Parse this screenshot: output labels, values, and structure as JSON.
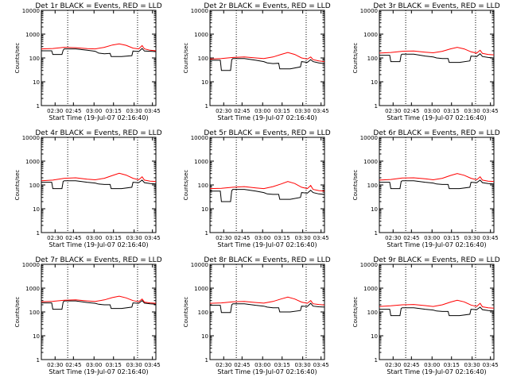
{
  "chart_data": [
    {
      "type": "line",
      "title": "Det 1r BLACK = Events, RED = LLD",
      "xlabel": "Start Time (19-Jul-07 02:16:40)",
      "ylabel": "Counts/sec",
      "yscale": "log",
      "ylim": [
        1,
        10000
      ],
      "xlim": [
        0,
        100
      ],
      "ytick_labels": [
        "1",
        "10",
        "100",
        "1000",
        "10000"
      ],
      "xtick_labels": [
        "02:30",
        "02:45",
        "03:00",
        "03:15",
        "03:30",
        "03:45"
      ],
      "xtick_positions": [
        12,
        28,
        46,
        63,
        81,
        97
      ],
      "vlines": [
        23,
        84
      ],
      "series": [
        {
          "name": "Events",
          "color": "#000000",
          "x": [
            0,
            9,
            10,
            18,
            19,
            20,
            30,
            40,
            47,
            50,
            55,
            60,
            61,
            70,
            79,
            80,
            85,
            88,
            90,
            95,
            100
          ],
          "y": [
            200,
            200,
            140,
            140,
            210,
            240,
            240,
            210,
            190,
            160,
            150,
            155,
            115,
            115,
            125,
            195,
            185,
            250,
            195,
            190,
            185
          ]
        },
        {
          "name": "LLD",
          "color": "#ff0000",
          "x": [
            0,
            10,
            20,
            30,
            40,
            47,
            55,
            62,
            68,
            74,
            80,
            85,
            88,
            90,
            95,
            100
          ],
          "y": [
            240,
            250,
            280,
            270,
            245,
            240,
            280,
            350,
            390,
            340,
            260,
            240,
            330,
            240,
            210,
            200
          ]
        }
      ]
    },
    {
      "type": "line",
      "title": "Det 2r BLACK = Events, RED = LLD",
      "xlabel": "Start Time (19-Jul-07 02:16:40)",
      "ylabel": "Counts/sec",
      "yscale": "log",
      "ylim": [
        1,
        10000
      ],
      "xlim": [
        0,
        100
      ],
      "ytick_labels": [
        "1",
        "10",
        "100",
        "1000",
        "10000"
      ],
      "xtick_labels": [
        "02:30",
        "02:45",
        "03:00",
        "03:15",
        "03:30",
        "03:45"
      ],
      "xtick_positions": [
        12,
        28,
        46,
        63,
        81,
        97
      ],
      "vlines": [
        23,
        84
      ],
      "series": [
        {
          "name": "Events",
          "color": "#000000",
          "x": [
            0,
            9,
            10,
            18,
            19,
            20,
            30,
            40,
            47,
            50,
            55,
            60,
            61,
            70,
            79,
            80,
            85,
            88,
            90,
            95,
            100
          ],
          "y": [
            80,
            80,
            30,
            30,
            85,
            95,
            95,
            80,
            70,
            62,
            58,
            60,
            35,
            35,
            42,
            70,
            65,
            85,
            70,
            62,
            58
          ]
        },
        {
          "name": "LLD",
          "color": "#ff0000",
          "x": [
            0,
            10,
            20,
            30,
            40,
            47,
            55,
            62,
            68,
            74,
            80,
            85,
            88,
            90,
            95,
            100
          ],
          "y": [
            90,
            95,
            105,
            110,
            100,
            95,
            110,
            140,
            170,
            140,
            100,
            90,
            110,
            85,
            75,
            70
          ]
        }
      ]
    },
    {
      "type": "line",
      "title": "Det 3r BLACK = Events, RED = LLD",
      "xlabel": "Start Time (19-Jul-07 02:16:40)",
      "ylabel": "Counts/sec",
      "yscale": "log",
      "ylim": [
        1,
        10000
      ],
      "xlim": [
        0,
        100
      ],
      "ytick_labels": [
        "1",
        "10",
        "100",
        "1000",
        "10000"
      ],
      "xtick_labels": [
        "02:30",
        "02:45",
        "03:00",
        "03:15",
        "03:30",
        "03:45"
      ],
      "xtick_positions": [
        12,
        28,
        46,
        63,
        81,
        97
      ],
      "vlines": [
        23,
        84
      ],
      "series": [
        {
          "name": "Events",
          "color": "#000000",
          "x": [
            0,
            9,
            10,
            18,
            19,
            20,
            30,
            40,
            47,
            50,
            55,
            60,
            61,
            70,
            79,
            80,
            85,
            88,
            90,
            95,
            100
          ],
          "y": [
            130,
            130,
            70,
            70,
            135,
            145,
            145,
            120,
            110,
            100,
            95,
            95,
            65,
            65,
            75,
            120,
            115,
            150,
            115,
            105,
            100
          ]
        },
        {
          "name": "LLD",
          "color": "#ff0000",
          "x": [
            0,
            10,
            20,
            30,
            40,
            47,
            55,
            62,
            68,
            74,
            80,
            85,
            88,
            90,
            95,
            100
          ],
          "y": [
            160,
            170,
            190,
            195,
            175,
            165,
            190,
            240,
            280,
            240,
            180,
            160,
            210,
            155,
            140,
            135
          ]
        }
      ]
    },
    {
      "type": "line",
      "title": "Det 4r BLACK = Events, RED = LLD",
      "xlabel": "Start Time (19-Jul-07 02:16:40)",
      "ylabel": "Counts/sec",
      "yscale": "log",
      "ylim": [
        1,
        10000
      ],
      "xlim": [
        0,
        100
      ],
      "ytick_labels": [
        "1",
        "10",
        "100",
        "1000",
        "10000"
      ],
      "xtick_labels": [
        "02:30",
        "02:45",
        "03:00",
        "03:15",
        "03:30",
        "03:45"
      ],
      "xtick_positions": [
        12,
        28,
        46,
        63,
        81,
        97
      ],
      "vlines": [
        23,
        84
      ],
      "series": [
        {
          "name": "Events",
          "color": "#000000",
          "x": [
            0,
            9,
            10,
            18,
            19,
            20,
            30,
            40,
            47,
            50,
            55,
            60,
            61,
            70,
            79,
            80,
            85,
            88,
            90,
            95,
            100
          ],
          "y": [
            130,
            130,
            70,
            70,
            140,
            150,
            150,
            130,
            120,
            110,
            105,
            105,
            70,
            70,
            80,
            130,
            125,
            160,
            125,
            115,
            110
          ]
        },
        {
          "name": "LLD",
          "color": "#ff0000",
          "x": [
            0,
            10,
            20,
            30,
            40,
            47,
            55,
            62,
            68,
            74,
            80,
            85,
            88,
            90,
            95,
            100
          ],
          "y": [
            150,
            160,
            190,
            200,
            175,
            165,
            190,
            250,
            310,
            260,
            190,
            165,
            220,
            160,
            145,
            140
          ]
        }
      ]
    },
    {
      "type": "line",
      "title": "Det 5r BLACK = Events, RED = LLD",
      "xlabel": "Start Time (19-Jul-07 02:16:40)",
      "ylabel": "Counts/sec",
      "yscale": "log",
      "ylim": [
        1,
        10000
      ],
      "xlim": [
        0,
        100
      ],
      "ytick_labels": [
        "1",
        "10",
        "100",
        "1000",
        "10000"
      ],
      "xtick_labels": [
        "02:30",
        "02:45",
        "03:00",
        "03:15",
        "03:30",
        "03:45"
      ],
      "xtick_positions": [
        12,
        28,
        46,
        63,
        81,
        97
      ],
      "vlines": [
        23,
        84
      ],
      "series": [
        {
          "name": "Events",
          "color": "#000000",
          "x": [
            0,
            9,
            10,
            18,
            19,
            20,
            30,
            40,
            47,
            50,
            55,
            60,
            61,
            70,
            79,
            80,
            85,
            88,
            90,
            95,
            100
          ],
          "y": [
            55,
            55,
            20,
            20,
            58,
            65,
            65,
            55,
            48,
            42,
            40,
            40,
            25,
            25,
            30,
            48,
            45,
            60,
            48,
            42,
            40
          ]
        },
        {
          "name": "LLD",
          "color": "#ff0000",
          "x": [
            0,
            10,
            20,
            30,
            40,
            47,
            55,
            62,
            68,
            74,
            80,
            85,
            88,
            90,
            95,
            100
          ],
          "y": [
            70,
            72,
            80,
            85,
            75,
            70,
            85,
            110,
            140,
            115,
            80,
            70,
            95,
            65,
            58,
            55
          ]
        }
      ]
    },
    {
      "type": "line",
      "title": "Det 6r BLACK = Events, RED = LLD",
      "xlabel": "Start Time (19-Jul-07 02:16:40)",
      "ylabel": "Counts/sec",
      "yscale": "log",
      "ylim": [
        1,
        10000
      ],
      "xlim": [
        0,
        100
      ],
      "ytick_labels": [
        "1",
        "10",
        "100",
        "1000",
        "10000"
      ],
      "xtick_labels": [
        "02:30",
        "02:45",
        "03:00",
        "03:15",
        "03:30",
        "03:45"
      ],
      "xtick_positions": [
        12,
        28,
        46,
        63,
        81,
        97
      ],
      "vlines": [
        23,
        84
      ],
      "series": [
        {
          "name": "Events",
          "color": "#000000",
          "x": [
            0,
            9,
            10,
            18,
            19,
            20,
            30,
            40,
            47,
            50,
            55,
            60,
            61,
            70,
            79,
            80,
            85,
            88,
            90,
            95,
            100
          ],
          "y": [
            130,
            130,
            70,
            70,
            140,
            150,
            150,
            130,
            120,
            110,
            105,
            105,
            70,
            70,
            80,
            130,
            125,
            160,
            125,
            115,
            110
          ]
        },
        {
          "name": "LLD",
          "color": "#ff0000",
          "x": [
            0,
            10,
            20,
            30,
            40,
            47,
            55,
            62,
            68,
            74,
            80,
            85,
            88,
            90,
            95,
            100
          ],
          "y": [
            160,
            170,
            195,
            200,
            180,
            165,
            190,
            250,
            300,
            255,
            190,
            165,
            220,
            160,
            145,
            140
          ]
        }
      ]
    },
    {
      "type": "line",
      "title": "Det 7r BLACK = Events, RED = LLD",
      "xlabel": "Start Time (19-Jul-07 02:16:40)",
      "ylabel": "Counts/sec",
      "yscale": "log",
      "ylim": [
        1,
        10000
      ],
      "xlim": [
        0,
        100
      ],
      "ytick_labels": [
        "1",
        "10",
        "100",
        "1000",
        "10000"
      ],
      "xtick_labels": [
        "02:30",
        "02:45",
        "03:00",
        "03:15",
        "03:30",
        "03:45"
      ],
      "xtick_positions": [
        12,
        28,
        46,
        63,
        81,
        97
      ],
      "vlines": [
        23,
        84
      ],
      "series": [
        {
          "name": "Events",
          "color": "#000000",
          "x": [
            0,
            9,
            10,
            18,
            19,
            20,
            30,
            40,
            47,
            50,
            55,
            60,
            61,
            70,
            79,
            80,
            85,
            88,
            90,
            95,
            100
          ],
          "y": [
            240,
            240,
            130,
            130,
            260,
            290,
            290,
            250,
            230,
            210,
            200,
            200,
            140,
            140,
            160,
            240,
            230,
            300,
            235,
            220,
            210
          ]
        },
        {
          "name": "LLD",
          "color": "#ff0000",
          "x": [
            0,
            10,
            20,
            30,
            40,
            47,
            55,
            62,
            68,
            74,
            80,
            85,
            88,
            90,
            95,
            100
          ],
          "y": [
            270,
            280,
            310,
            320,
            290,
            275,
            320,
            400,
            460,
            390,
            300,
            270,
            350,
            260,
            240,
            230
          ]
        }
      ]
    },
    {
      "type": "line",
      "title": "Det 8r BLACK = Events, RED = LLD",
      "xlabel": "Start Time (19-Jul-07 02:16:40)",
      "ylabel": "Counts/sec",
      "yscale": "log",
      "ylim": [
        1,
        10000
      ],
      "xlim": [
        0,
        100
      ],
      "ytick_labels": [
        "1",
        "10",
        "100",
        "1000",
        "10000"
      ],
      "xtick_labels": [
        "02:30",
        "02:45",
        "03:00",
        "03:15",
        "03:30",
        "03:45"
      ],
      "xtick_positions": [
        12,
        28,
        46,
        63,
        81,
        97
      ],
      "vlines": [
        23,
        84
      ],
      "series": [
        {
          "name": "Events",
          "color": "#000000",
          "x": [
            0,
            9,
            10,
            18,
            19,
            20,
            30,
            40,
            47,
            50,
            55,
            60,
            61,
            70,
            79,
            80,
            85,
            88,
            90,
            95,
            100
          ],
          "y": [
            190,
            190,
            95,
            95,
            200,
            220,
            220,
            190,
            175,
            160,
            150,
            150,
            100,
            100,
            115,
            175,
            170,
            230,
            175,
            165,
            160
          ]
        },
        {
          "name": "LLD",
          "color": "#ff0000",
          "x": [
            0,
            10,
            20,
            30,
            40,
            47,
            55,
            62,
            68,
            74,
            80,
            85,
            88,
            90,
            95,
            100
          ],
          "y": [
            230,
            240,
            265,
            275,
            250,
            235,
            275,
            350,
            420,
            350,
            260,
            230,
            300,
            220,
            205,
            195
          ]
        }
      ]
    },
    {
      "type": "line",
      "title": "Det 9r BLACK = Events, RED = LLD",
      "xlabel": "Start Time (19-Jul-07 02:16:40)",
      "ylabel": "Counts/sec",
      "yscale": "log",
      "ylim": [
        1,
        10000
      ],
      "xlim": [
        0,
        100
      ],
      "ytick_labels": [
        "1",
        "10",
        "100",
        "1000",
        "10000"
      ],
      "xtick_labels": [
        "02:30",
        "02:45",
        "03:00",
        "03:15",
        "03:30",
        "03:45"
      ],
      "xtick_positions": [
        12,
        28,
        46,
        63,
        81,
        97
      ],
      "vlines": [
        23,
        84
      ],
      "series": [
        {
          "name": "Events",
          "color": "#000000",
          "x": [
            0,
            9,
            10,
            18,
            19,
            20,
            30,
            40,
            47,
            50,
            55,
            60,
            61,
            70,
            79,
            80,
            85,
            88,
            90,
            95,
            100
          ],
          "y": [
            130,
            130,
            70,
            70,
            140,
            150,
            150,
            130,
            120,
            110,
            105,
            105,
            70,
            70,
            80,
            130,
            125,
            160,
            125,
            115,
            110
          ]
        },
        {
          "name": "LLD",
          "color": "#ff0000",
          "x": [
            0,
            10,
            20,
            30,
            40,
            47,
            55,
            62,
            68,
            74,
            80,
            85,
            88,
            90,
            95,
            100
          ],
          "y": [
            170,
            180,
            200,
            205,
            185,
            170,
            200,
            260,
            310,
            265,
            195,
            170,
            230,
            165,
            150,
            145
          ]
        }
      ]
    }
  ]
}
